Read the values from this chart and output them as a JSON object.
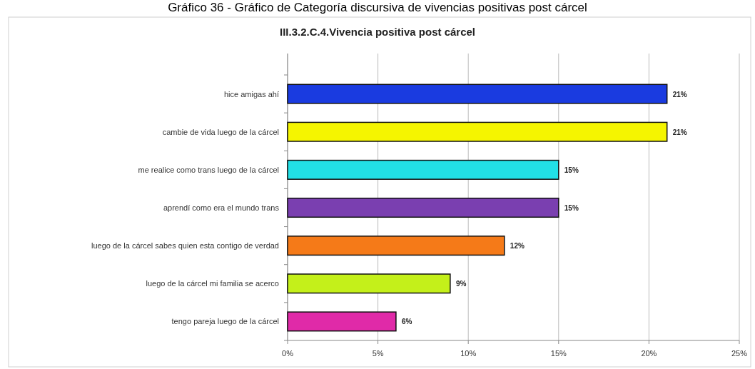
{
  "chart_data": {
    "type": "bar",
    "orientation": "horizontal",
    "title": "III.3.2.C.4.Vivencia positiva post cárcel",
    "annotations": [
      "Gráfico 36 - Gráfico de Categoría discursiva de vivencias positivas post cárcel"
    ],
    "categories": [
      "hice amigas ahí",
      "cambie de vida luego de la cárcel",
      "me realice como trans luego de la cárcel",
      "aprendí como era el mundo trans",
      "luego de la cárcel sabes quien esta contigo de verdad",
      "luego de la cárcel mi familia se acerco",
      "tengo pareja luego de la cárcel"
    ],
    "values": [
      21,
      21,
      15,
      15,
      12,
      9,
      6
    ],
    "colors": [
      "#1a3be0",
      "#f5f500",
      "#22e0e6",
      "#7a3fb0",
      "#f57a18",
      "#c4f01a",
      "#e02aa8"
    ],
    "value_labels": [
      "21%",
      "21%",
      "15%",
      "15%",
      "12%",
      "9%",
      "6%"
    ],
    "xlim": [
      0,
      25
    ],
    "xticks": [
      {
        "value": 0,
        "label": "0%"
      },
      {
        "value": 5,
        "label": "5%"
      },
      {
        "value": 10,
        "label": "10%"
      },
      {
        "value": 15,
        "label": "15%"
      },
      {
        "value": 20,
        "label": "20%"
      },
      {
        "value": 25,
        "label": "25%"
      }
    ],
    "grid": "x"
  }
}
